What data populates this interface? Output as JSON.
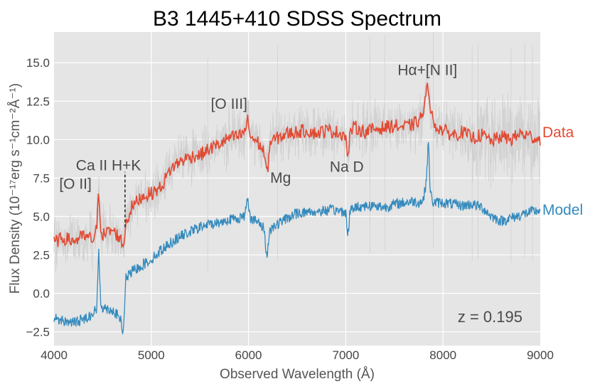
{
  "chart_data": {
    "type": "line",
    "title": "B3 1445+410 SDSS Spectrum",
    "xlabel": "Observed Wavelength (Å)",
    "ylabel": "Flux Density (10⁻¹⁷erg s⁻¹cm⁻²Å⁻¹)",
    "xlim": [
      4000,
      9000
    ],
    "ylim": [
      -3.4,
      17.0
    ],
    "xticks": [
      4000,
      5000,
      6000,
      7000,
      8000,
      9000
    ],
    "xtick_labels": [
      "4000",
      "5000",
      "6000",
      "7000",
      "8000",
      "9000"
    ],
    "yticks": [
      -2.5,
      0.0,
      2.5,
      5.0,
      7.5,
      10.0,
      12.5,
      15.0
    ],
    "ytick_labels": [
      "−2.5",
      "0.0",
      "2.5",
      "5.0",
      "7.5",
      "10.0",
      "12.5",
      "15.0"
    ],
    "redshift_label": "z = 0.195",
    "series": [
      {
        "name": "Data",
        "color": "#e24a33",
        "x": [
          4000,
          4100,
          4200,
          4300,
          4400,
          4440,
          4460,
          4480,
          4500,
          4600,
          4680,
          4710,
          4740,
          4800,
          4900,
          5000,
          5100,
          5200,
          5300,
          5400,
          5500,
          5600,
          5700,
          5800,
          5900,
          5960,
          5990,
          6020,
          6100,
          6160,
          6190,
          6220,
          6300,
          6400,
          6500,
          6600,
          6700,
          6800,
          6900,
          7000,
          7020,
          7040,
          7060,
          7100,
          7200,
          7300,
          7400,
          7500,
          7600,
          7700,
          7760,
          7800,
          7830,
          7850,
          7870,
          7900,
          8000,
          8100,
          8200,
          8300,
          8400,
          8500,
          8600,
          8700,
          8800,
          8900,
          9000
        ],
        "values": [
          3.3,
          3.6,
          3.4,
          3.7,
          3.5,
          4.2,
          6.8,
          4.3,
          3.8,
          4.1,
          3.6,
          3.0,
          4.6,
          5.6,
          6.3,
          6.5,
          6.9,
          8.1,
          8.6,
          8.9,
          9.0,
          9.4,
          9.7,
          10.1,
          10.2,
          10.5,
          11.3,
          10.2,
          9.8,
          9.2,
          7.6,
          9.8,
          10.1,
          10.4,
          10.5,
          10.6,
          10.4,
          10.6,
          10.5,
          10.3,
          8.6,
          10.1,
          10.7,
          10.8,
          10.5,
          10.7,
          10.8,
          10.9,
          10.8,
          11.0,
          11.3,
          11.8,
          13.0,
          13.6,
          12.2,
          11.0,
          10.6,
          10.3,
          10.5,
          10.1,
          10.3,
          9.9,
          10.2,
          10.0,
          10.4,
          10.2,
          10.0
        ]
      },
      {
        "name": "Model",
        "color": "#348abd",
        "x": [
          4000,
          4100,
          4200,
          4300,
          4400,
          4440,
          4460,
          4480,
          4500,
          4600,
          4680,
          4710,
          4740,
          4800,
          4900,
          5000,
          5100,
          5200,
          5300,
          5400,
          5500,
          5600,
          5700,
          5800,
          5900,
          5960,
          5990,
          6020,
          6100,
          6160,
          6190,
          6220,
          6300,
          6400,
          6500,
          6600,
          6700,
          6800,
          6900,
          7000,
          7020,
          7040,
          7060,
          7100,
          7200,
          7300,
          7400,
          7500,
          7600,
          7700,
          7760,
          7800,
          7830,
          7850,
          7870,
          7900,
          8000,
          8100,
          8200,
          8300,
          8400,
          8500,
          8600,
          8700,
          8800,
          8900,
          9000
        ],
        "values": [
          -1.6,
          -1.8,
          -1.9,
          -1.7,
          -1.3,
          -1.0,
          2.8,
          -0.6,
          -0.9,
          -1.1,
          -1.6,
          -2.7,
          1.0,
          1.4,
          1.8,
          2.2,
          2.8,
          3.3,
          3.7,
          4.0,
          4.3,
          4.5,
          4.6,
          4.8,
          4.9,
          5.0,
          6.3,
          4.9,
          4.6,
          4.2,
          2.3,
          4.2,
          4.5,
          4.9,
          5.2,
          5.3,
          5.3,
          5.4,
          5.4,
          5.3,
          3.6,
          5.1,
          5.5,
          5.6,
          5.7,
          5.7,
          5.6,
          5.8,
          5.9,
          6.0,
          5.9,
          6.1,
          7.5,
          9.9,
          6.5,
          5.9,
          5.9,
          5.8,
          5.7,
          5.8,
          5.6,
          5.0,
          4.7,
          4.9,
          5.1,
          5.3,
          5.4
        ]
      }
    ],
    "annotations": [
      {
        "text": "[O II]",
        "x": 4220,
        "y": 6.8
      },
      {
        "text": "Ca II H+K",
        "x": 4560,
        "y": 8.0
      },
      {
        "text": "[O III]",
        "x": 5800,
        "y": 12.0
      },
      {
        "text": "Mg",
        "x": 6330,
        "y": 7.2
      },
      {
        "text": "Na D",
        "x": 7010,
        "y": 7.9
      },
      {
        "text": "Hα+[N II]",
        "x": 7840,
        "y": 14.2
      }
    ],
    "marker_line": {
      "x": 4730,
      "y_from": 4.3,
      "y_to": 7.9
    }
  }
}
